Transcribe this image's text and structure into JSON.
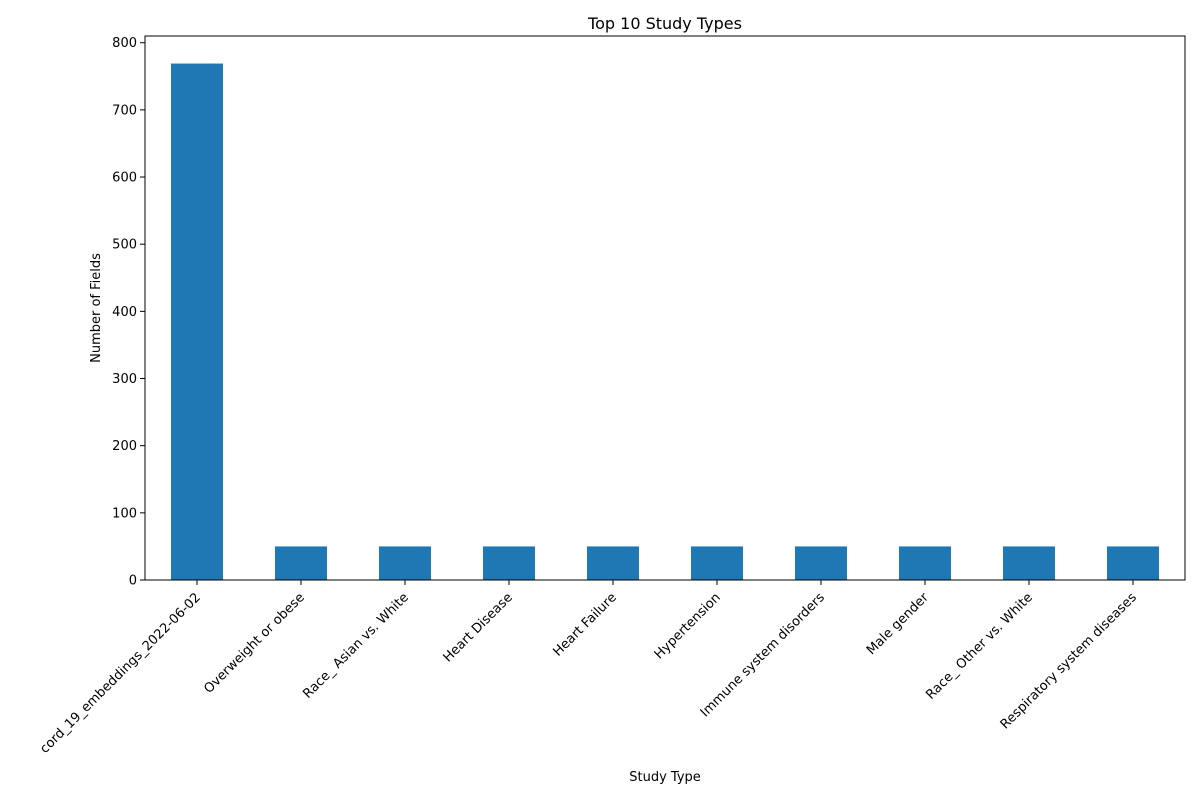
{
  "chart_data": {
    "type": "bar",
    "title": "Top 10 Study Types",
    "xlabel": "Study Type",
    "ylabel": "Number of Fields",
    "categories": [
      "cord_19_embeddings_2022-06-02",
      "Overweight or obese",
      "Race_ Asian vs. White",
      "Heart Disease",
      "Heart Failure",
      "Hypertension",
      "Immune system disorders",
      "Male gender",
      "Race_ Other vs. White",
      "Respiratory system diseases"
    ],
    "values": [
      769,
      50,
      50,
      50,
      50,
      50,
      50,
      50,
      50,
      50
    ],
    "ylim": [
      0,
      810
    ],
    "yticks": [
      0,
      100,
      200,
      300,
      400,
      500,
      600,
      700,
      800
    ],
    "bar_color": "#1f77b4",
    "grid": false,
    "legend": "none"
  }
}
